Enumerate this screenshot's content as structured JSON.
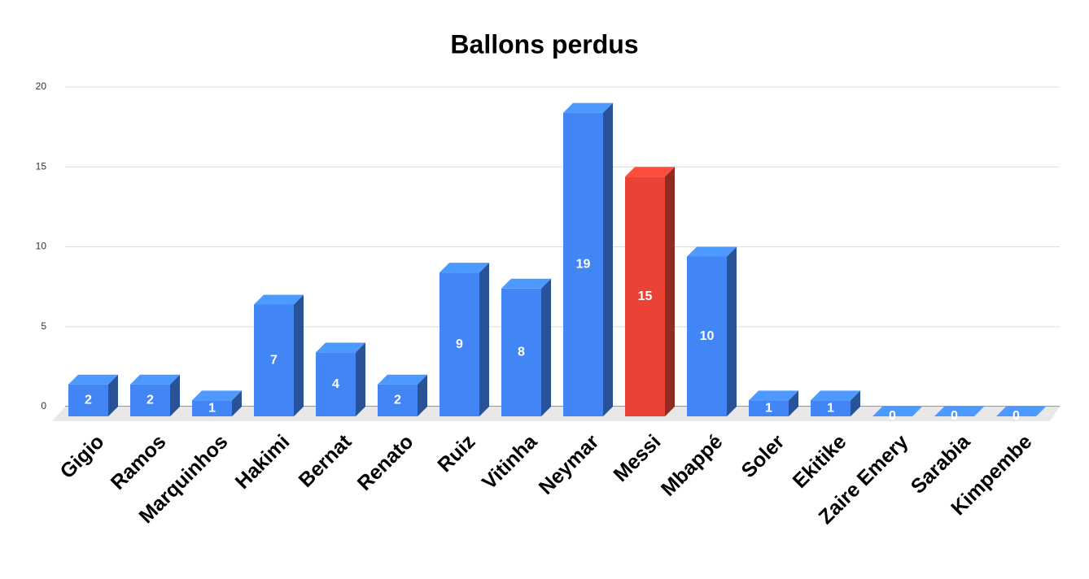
{
  "chart_data": {
    "type": "bar3d",
    "title": "Ballons perdus",
    "categories": [
      "Gigio",
      "Ramos",
      "Marquinhos",
      "Hakimi",
      "Bernat",
      "Renato",
      "Ruiz",
      "Vitinha",
      "Neymar",
      "Messi",
      "Mbappé",
      "Soler",
      "Ekitike",
      "Zaire Emery",
      "Sarabia",
      "Kimpembe"
    ],
    "values": [
      2,
      2,
      1,
      7,
      4,
      2,
      9,
      8,
      19,
      15,
      10,
      1,
      1,
      0,
      0,
      0
    ],
    "colors": [
      "#4285f4",
      "#4285f4",
      "#4285f4",
      "#4285f4",
      "#4285f4",
      "#4285f4",
      "#4285f4",
      "#4285f4",
      "#4285f4",
      "#ea4335",
      "#4285f4",
      "#4285f4",
      "#4285f4",
      "#4285f4",
      "#4285f4",
      "#4285f4"
    ],
    "ylim": [
      0,
      20
    ],
    "yticks": [
      0,
      5,
      10,
      15,
      20
    ],
    "grid": true
  }
}
